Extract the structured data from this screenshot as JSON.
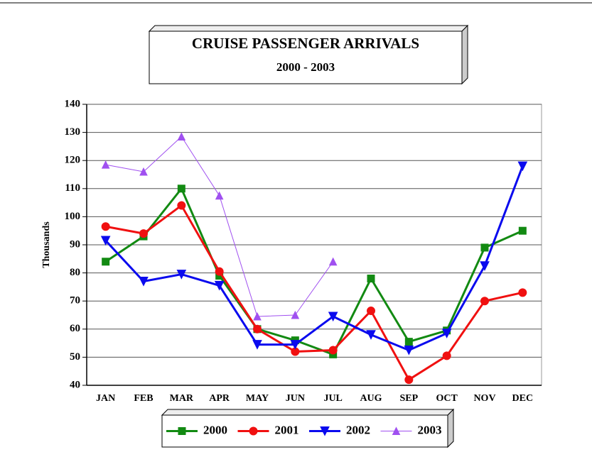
{
  "chart_data": {
    "type": "line",
    "title": "CRUISE PASSENGER ARRIVALS",
    "subtitle": "2000 - 2003",
    "y_label": "Thousands",
    "categories": [
      "JAN",
      "FEB",
      "MAR",
      "APR",
      "MAY",
      "JUN",
      "JUL",
      "AUG",
      "SEP",
      "OCT",
      "NOV",
      "DEC"
    ],
    "series": [
      {
        "name": "2000",
        "color": "#128a12",
        "marker": "square",
        "line_width": 3,
        "values": [
          84,
          93,
          110,
          79,
          60,
          56,
          51,
          78,
          55.5,
          59.5,
          89,
          95
        ]
      },
      {
        "name": "2001",
        "color": "#f01010",
        "marker": "circle",
        "line_width": 3,
        "values": [
          96.5,
          94,
          104,
          80.5,
          60,
          52,
          52.5,
          66.5,
          42,
          50.5,
          70,
          73
        ]
      },
      {
        "name": "2002",
        "color": "#0a0aee",
        "marker": "triangle-down",
        "line_width": 3,
        "values": [
          91.5,
          77,
          79.5,
          75.5,
          54.5,
          54.5,
          64.5,
          58,
          52.5,
          58.5,
          82.5,
          118
        ]
      },
      {
        "name": "2003",
        "color": "#a050f0",
        "marker": "triangle-up",
        "line_width": 1,
        "values": [
          118.5,
          116,
          128.5,
          107.5,
          64.5,
          65,
          84,
          null,
          null,
          null,
          null,
          null
        ]
      }
    ],
    "ylim": [
      40,
      140
    ],
    "yticks": [
      40,
      50,
      60,
      70,
      80,
      90,
      100,
      110,
      120,
      130,
      140
    ],
    "grid": true,
    "legend": "bottom"
  }
}
